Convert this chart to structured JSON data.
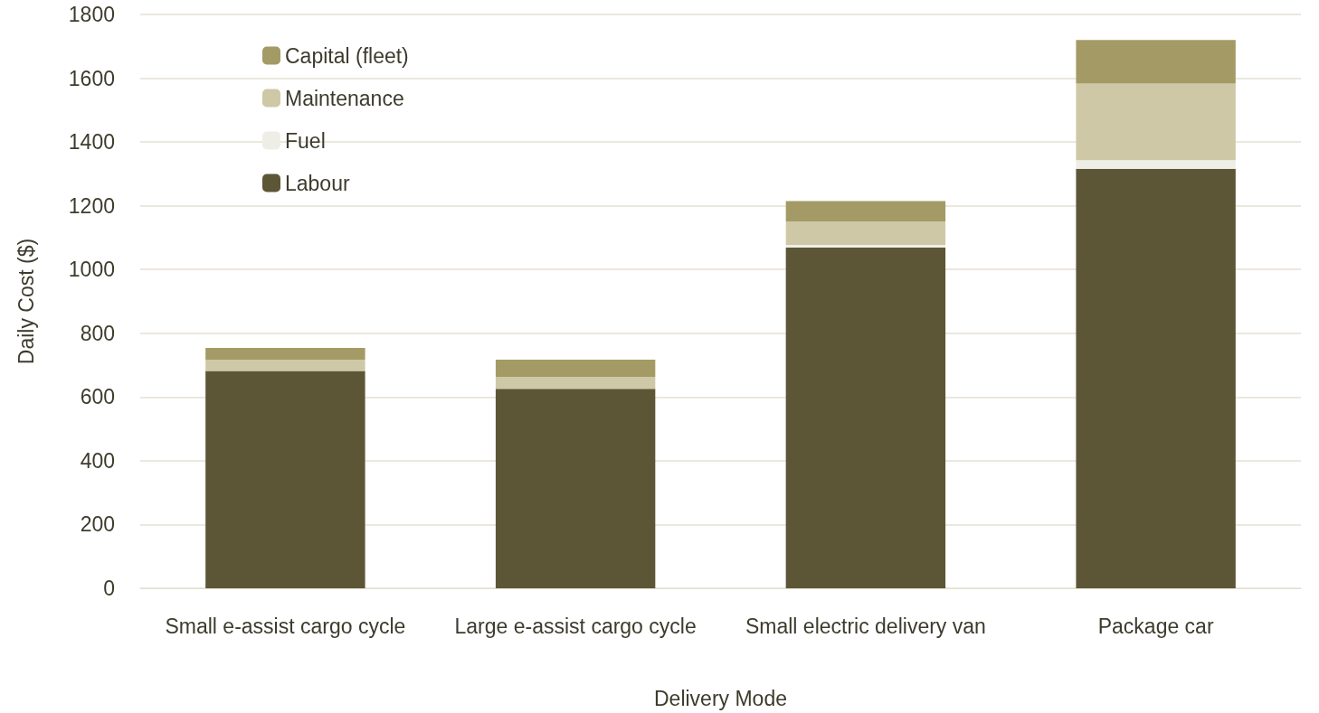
{
  "chart_data": {
    "type": "bar",
    "stacked": true,
    "xlabel": "Delivery Mode",
    "ylabel": "Daily Cost ($)",
    "categories": [
      "Small e-assist cargo cycle",
      "Large e-assist cargo cycle",
      "Small electric delivery van",
      "Package car"
    ],
    "series": [
      {
        "name": "Labour",
        "color": "#5c5637",
        "values": [
          682,
          626,
          1069,
          1316
        ]
      },
      {
        "name": "Fuel",
        "color": "#efeee6",
        "values": [
          null,
          null,
          8,
          27
        ]
      },
      {
        "name": "Maintenance",
        "color": "#cfc8a6",
        "values": [
          35,
          37,
          74,
          240
        ]
      },
      {
        "name": "Capital (fleet)",
        "color": "#a49a65",
        "values": [
          37,
          54,
          64,
          137
        ]
      }
    ],
    "ylim": [
      0,
      1800
    ],
    "yticks": [
      0,
      200,
      400,
      600,
      800,
      1000,
      1200,
      1400,
      1600,
      1800
    ],
    "grid": "y",
    "legend": "top left"
  }
}
